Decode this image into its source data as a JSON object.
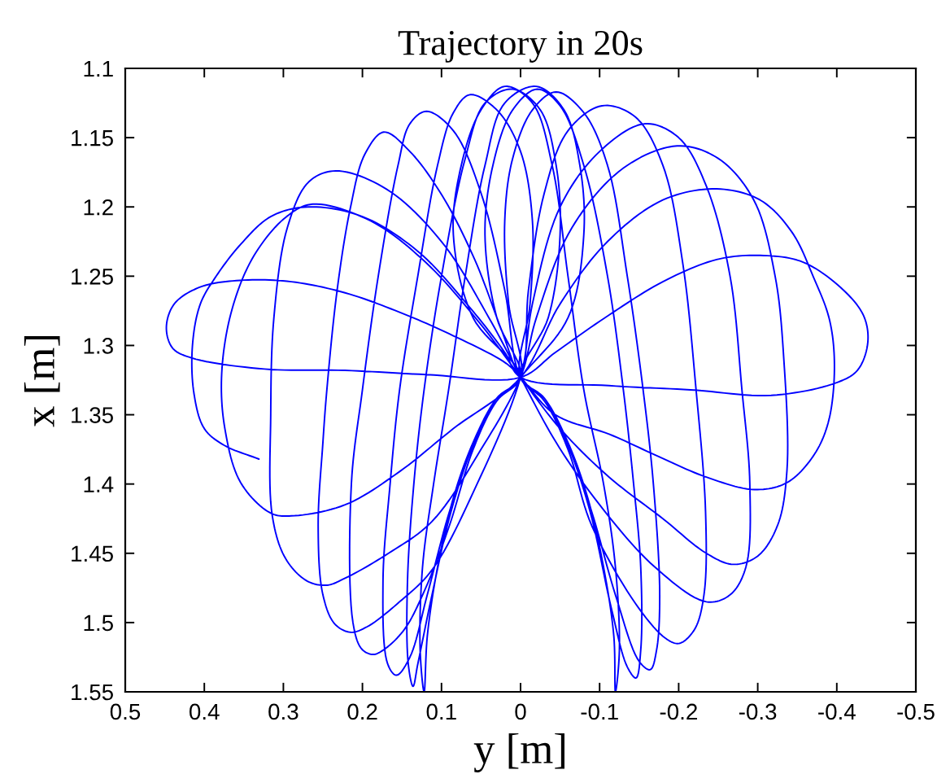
{
  "chart_data": {
    "type": "line",
    "title": "Trajectory in 20s",
    "xlabel": "y [m]",
    "ylabel": "x [m]",
    "xlim": [
      0.5,
      -0.5
    ],
    "ylim": [
      1.55,
      1.1
    ],
    "xticks": [
      0.5,
      0.4,
      0.3,
      0.2,
      0.1,
      0,
      -0.1,
      -0.2,
      -0.3,
      -0.4,
      -0.5
    ],
    "yticks": [
      1.1,
      1.15,
      1.2,
      1.25,
      1.3,
      1.35,
      1.4,
      1.45,
      1.5,
      1.55
    ],
    "series": [
      {
        "color": "#0000ff",
        "x": [
          0.331,
          0.375,
          0.4,
          0.413,
          0.415,
          0.405,
          0.385,
          0.354,
          0.316,
          0.269,
          0.2,
          0.13,
          0.065,
          0.02,
          0,
          -0.112,
          -0.215,
          -0.317,
          -0.399,
          -0.426,
          -0.439,
          -0.435,
          -0.412,
          -0.358,
          -0.303,
          -0.248,
          -0.18,
          -0.112,
          -0.044,
          0,
          0.119,
          0.222,
          0.324,
          0.416,
          0.44,
          0.448,
          0.438,
          0.406,
          0.355,
          0.29,
          0.222,
          0.153,
          0.085,
          0.018,
          0,
          -0.044,
          -0.112,
          -0.174,
          -0.235,
          -0.296,
          -0.337,
          -0.37,
          -0.389,
          -0.397,
          -0.391,
          -0.37,
          -0.343,
          -0.303,
          -0.248,
          -0.18,
          -0.11,
          -0.05,
          0,
          0.085,
          0.153,
          0.222,
          0.29,
          0.316,
          0.354,
          0.374,
          0.378,
          0.365,
          0.337,
          0.296,
          0.263,
          0.19,
          0.12,
          0.05,
          0,
          -0.05,
          -0.112,
          -0.18,
          -0.235,
          -0.269,
          -0.3,
          -0.325,
          -0.337,
          -0.333,
          -0.322,
          -0.295,
          -0.25,
          -0.198,
          -0.13,
          -0.065,
          -0.02,
          0,
          0.05,
          0.112,
          0.167,
          0.222,
          0.245,
          0.27,
          0.297,
          0.314,
          0.316,
          0.312,
          0.295,
          0.268,
          0.234,
          0.17,
          0.1,
          0.04,
          0,
          -0.045,
          -0.1,
          -0.17,
          -0.235,
          -0.265,
          -0.285,
          -0.29,
          -0.28,
          -0.265,
          -0.235,
          -0.2,
          -0.157,
          -0.1,
          -0.05,
          -0.015,
          0,
          0.055,
          0.112,
          0.153,
          0.194,
          0.215,
          0.235,
          0.25,
          0.256,
          0.25,
          0.245,
          0.232,
          0.215,
          0.197,
          0.173,
          0.14,
          0.099,
          0.058,
          0.024,
          0,
          -0.03,
          -0.06,
          -0.09,
          -0.15,
          -0.185,
          -0.201,
          -0.22,
          -0.232,
          -0.234,
          -0.222,
          -0.205,
          -0.18,
          -0.145,
          -0.103,
          -0.06,
          -0.03,
          -0.01,
          0,
          0.03,
          0.06,
          0.09,
          0.12,
          0.147,
          0.174,
          0.187,
          0.201,
          0.212,
          0.214,
          0.2,
          0.18,
          0.155,
          0.14,
          0.119,
          0.085,
          0.05,
          0.02,
          0,
          -0.03,
          -0.062,
          -0.09,
          -0.12,
          -0.15,
          -0.164,
          -0.172,
          -0.176,
          -0.168,
          -0.155,
          -0.135,
          -0.11,
          -0.08,
          -0.045,
          -0.015,
          0.01,
          0.02,
          0.015,
          0,
          0.03,
          0.062,
          0.09,
          0.118,
          0.14,
          0.157,
          0.168,
          0.174,
          0.165,
          0.153,
          0.13,
          0.105,
          0.085,
          0.064,
          0.03,
          0,
          -0.015,
          -0.012,
          0,
          -0.03,
          -0.06,
          -0.088,
          -0.115,
          -0.135,
          -0.146,
          -0.152,
          -0.152,
          -0.143,
          -0.13,
          -0.11,
          -0.08,
          -0.05,
          -0.021,
          0.01,
          0.035,
          0.045,
          0.03,
          0,
          0.03,
          0.06,
          0.088,
          0.112,
          0.13,
          0.136,
          0.142,
          0.143,
          0.135,
          0.122,
          0.1,
          0.07,
          0.045,
          0.01,
          -0.025,
          -0.045,
          -0.05,
          -0.035,
          0,
          -0.03,
          -0.06,
          -0.085,
          -0.105,
          -0.118,
          -0.12,
          -0.125,
          -0.12,
          -0.105,
          -0.08,
          -0.06,
          -0.04,
          -0.015,
          0.02,
          0.05,
          0.075,
          0.085,
          0.06,
          0,
          0.03,
          0.06,
          0.085,
          0.105,
          0.118,
          0.122,
          0.127,
          0.124,
          0.11,
          0.091,
          0.07,
          0.045,
          0.02,
          -0.02,
          -0.055,
          -0.075,
          -0.08,
          -0.06,
          0
        ],
        "values": [
          1.382,
          1.372,
          1.36,
          1.335,
          1.3,
          1.27,
          1.25,
          1.227,
          1.207,
          1.2,
          1.207,
          1.232,
          1.272,
          1.305,
          1.323,
          1.329,
          1.332,
          1.336,
          1.327,
          1.318,
          1.299,
          1.28,
          1.262,
          1.24,
          1.235,
          1.238,
          1.254,
          1.278,
          1.305,
          1.323,
          1.321,
          1.318,
          1.317,
          1.309,
          1.302,
          1.287,
          1.27,
          1.258,
          1.253,
          1.254,
          1.262,
          1.276,
          1.293,
          1.313,
          1.323,
          1.35,
          1.364,
          1.38,
          1.395,
          1.404,
          1.399,
          1.38,
          1.356,
          1.317,
          1.282,
          1.25,
          1.218,
          1.195,
          1.187,
          1.195,
          1.225,
          1.27,
          1.323,
          1.36,
          1.391,
          1.415,
          1.423,
          1.421,
          1.399,
          1.36,
          1.32,
          1.274,
          1.235,
          1.207,
          1.198,
          1.21,
          1.24,
          1.285,
          1.323,
          1.36,
          1.395,
          1.425,
          1.45,
          1.458,
          1.452,
          1.43,
          1.39,
          1.31,
          1.25,
          1.195,
          1.165,
          1.156,
          1.172,
          1.215,
          1.28,
          1.323,
          1.375,
          1.427,
          1.45,
          1.468,
          1.473,
          1.47,
          1.454,
          1.423,
          1.35,
          1.28,
          1.215,
          1.182,
          1.174,
          1.187,
          1.225,
          1.28,
          1.323,
          1.37,
          1.415,
          1.46,
          1.485,
          1.48,
          1.46,
          1.4,
          1.332,
          1.25,
          1.185,
          1.15,
          1.14,
          1.16,
          1.2,
          1.27,
          1.323,
          1.4,
          1.462,
          1.485,
          1.503,
          1.507,
          1.501,
          1.48,
          1.43,
          1.37,
          1.332,
          1.26,
          1.2,
          1.162,
          1.146,
          1.16,
          1.192,
          1.238,
          1.289,
          1.323,
          1.34,
          1.375,
          1.43,
          1.49,
          1.512,
          1.515,
          1.505,
          1.48,
          1.42,
          1.332,
          1.24,
          1.17,
          1.135,
          1.127,
          1.145,
          1.19,
          1.26,
          1.323,
          1.34,
          1.375,
          1.43,
          1.475,
          1.505,
          1.52,
          1.523,
          1.519,
          1.5,
          1.4,
          1.332,
          1.25,
          1.17,
          1.14,
          1.131,
          1.145,
          1.19,
          1.26,
          1.323,
          1.34,
          1.375,
          1.42,
          1.48,
          1.528,
          1.534,
          1.52,
          1.48,
          1.4,
          1.332,
          1.25,
          1.17,
          1.132,
          1.117,
          1.13,
          1.165,
          1.21,
          1.27,
          1.323,
          1.34,
          1.375,
          1.42,
          1.48,
          1.525,
          1.538,
          1.53,
          1.47,
          1.4,
          1.332,
          1.25,
          1.17,
          1.132,
          1.119,
          1.13,
          1.16,
          1.21,
          1.27,
          1.323,
          1.338,
          1.372,
          1.42,
          1.49,
          1.532,
          1.54,
          1.52,
          1.46,
          1.4,
          1.332,
          1.25,
          1.17,
          1.127,
          1.115,
          1.13,
          1.17,
          1.22,
          1.28,
          1.323,
          1.338,
          1.372,
          1.42,
          1.48,
          1.53,
          1.546,
          1.53,
          1.47,
          1.4,
          1.332,
          1.25,
          1.165,
          1.125,
          1.115,
          1.13,
          1.17,
          1.22,
          1.28,
          1.323,
          1.338,
          1.37,
          1.41,
          1.46,
          1.51,
          1.55,
          1.52,
          1.46,
          1.4,
          1.332,
          1.25,
          1.17,
          1.125,
          1.113,
          1.13,
          1.17,
          1.22,
          1.28,
          1.323,
          1.338,
          1.37,
          1.41,
          1.46,
          1.51,
          1.55,
          1.52,
          1.46,
          1.4,
          1.332,
          1.25,
          1.17,
          1.125,
          1.113,
          1.13,
          1.17,
          1.22,
          1.28,
          1.323
        ]
      }
    ]
  }
}
